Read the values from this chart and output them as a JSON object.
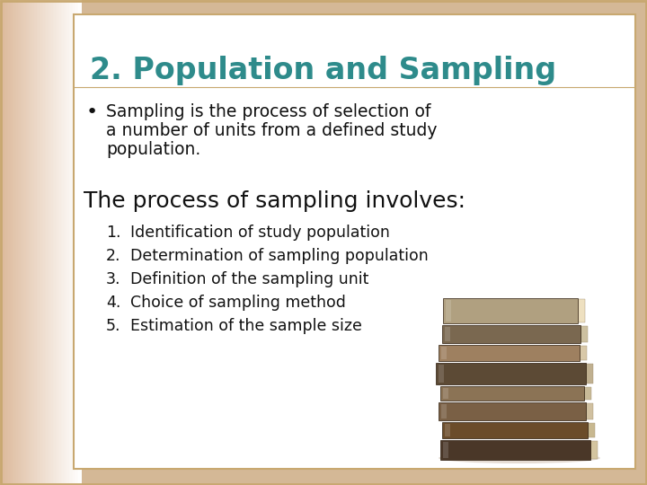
{
  "title": "2. Population and Sampling",
  "title_color": "#2E8B8B",
  "title_fontsize": 24,
  "bullet_text_line1": "Sampling is the process of selection of",
  "bullet_text_line2": "a number of units from a defined study",
  "bullet_text_line3": "population.",
  "bullet_fontsize": 13.5,
  "subheading": "The process of sampling involves:",
  "subheading_fontsize": 18,
  "numbered_items": [
    "Identification of study population",
    "Determination of sampling population",
    "Definition of the sampling unit",
    "Choice of sampling method",
    "Estimation of the sample size"
  ],
  "numbered_fontsize": 12.5,
  "bg_outer": "#D4B896",
  "bg_inner": "#FFFFFF",
  "border_color": "#C8A870",
  "text_color": "#111111",
  "gradient_left": "#E8C9A0",
  "gradient_right": "#FFFFFF"
}
